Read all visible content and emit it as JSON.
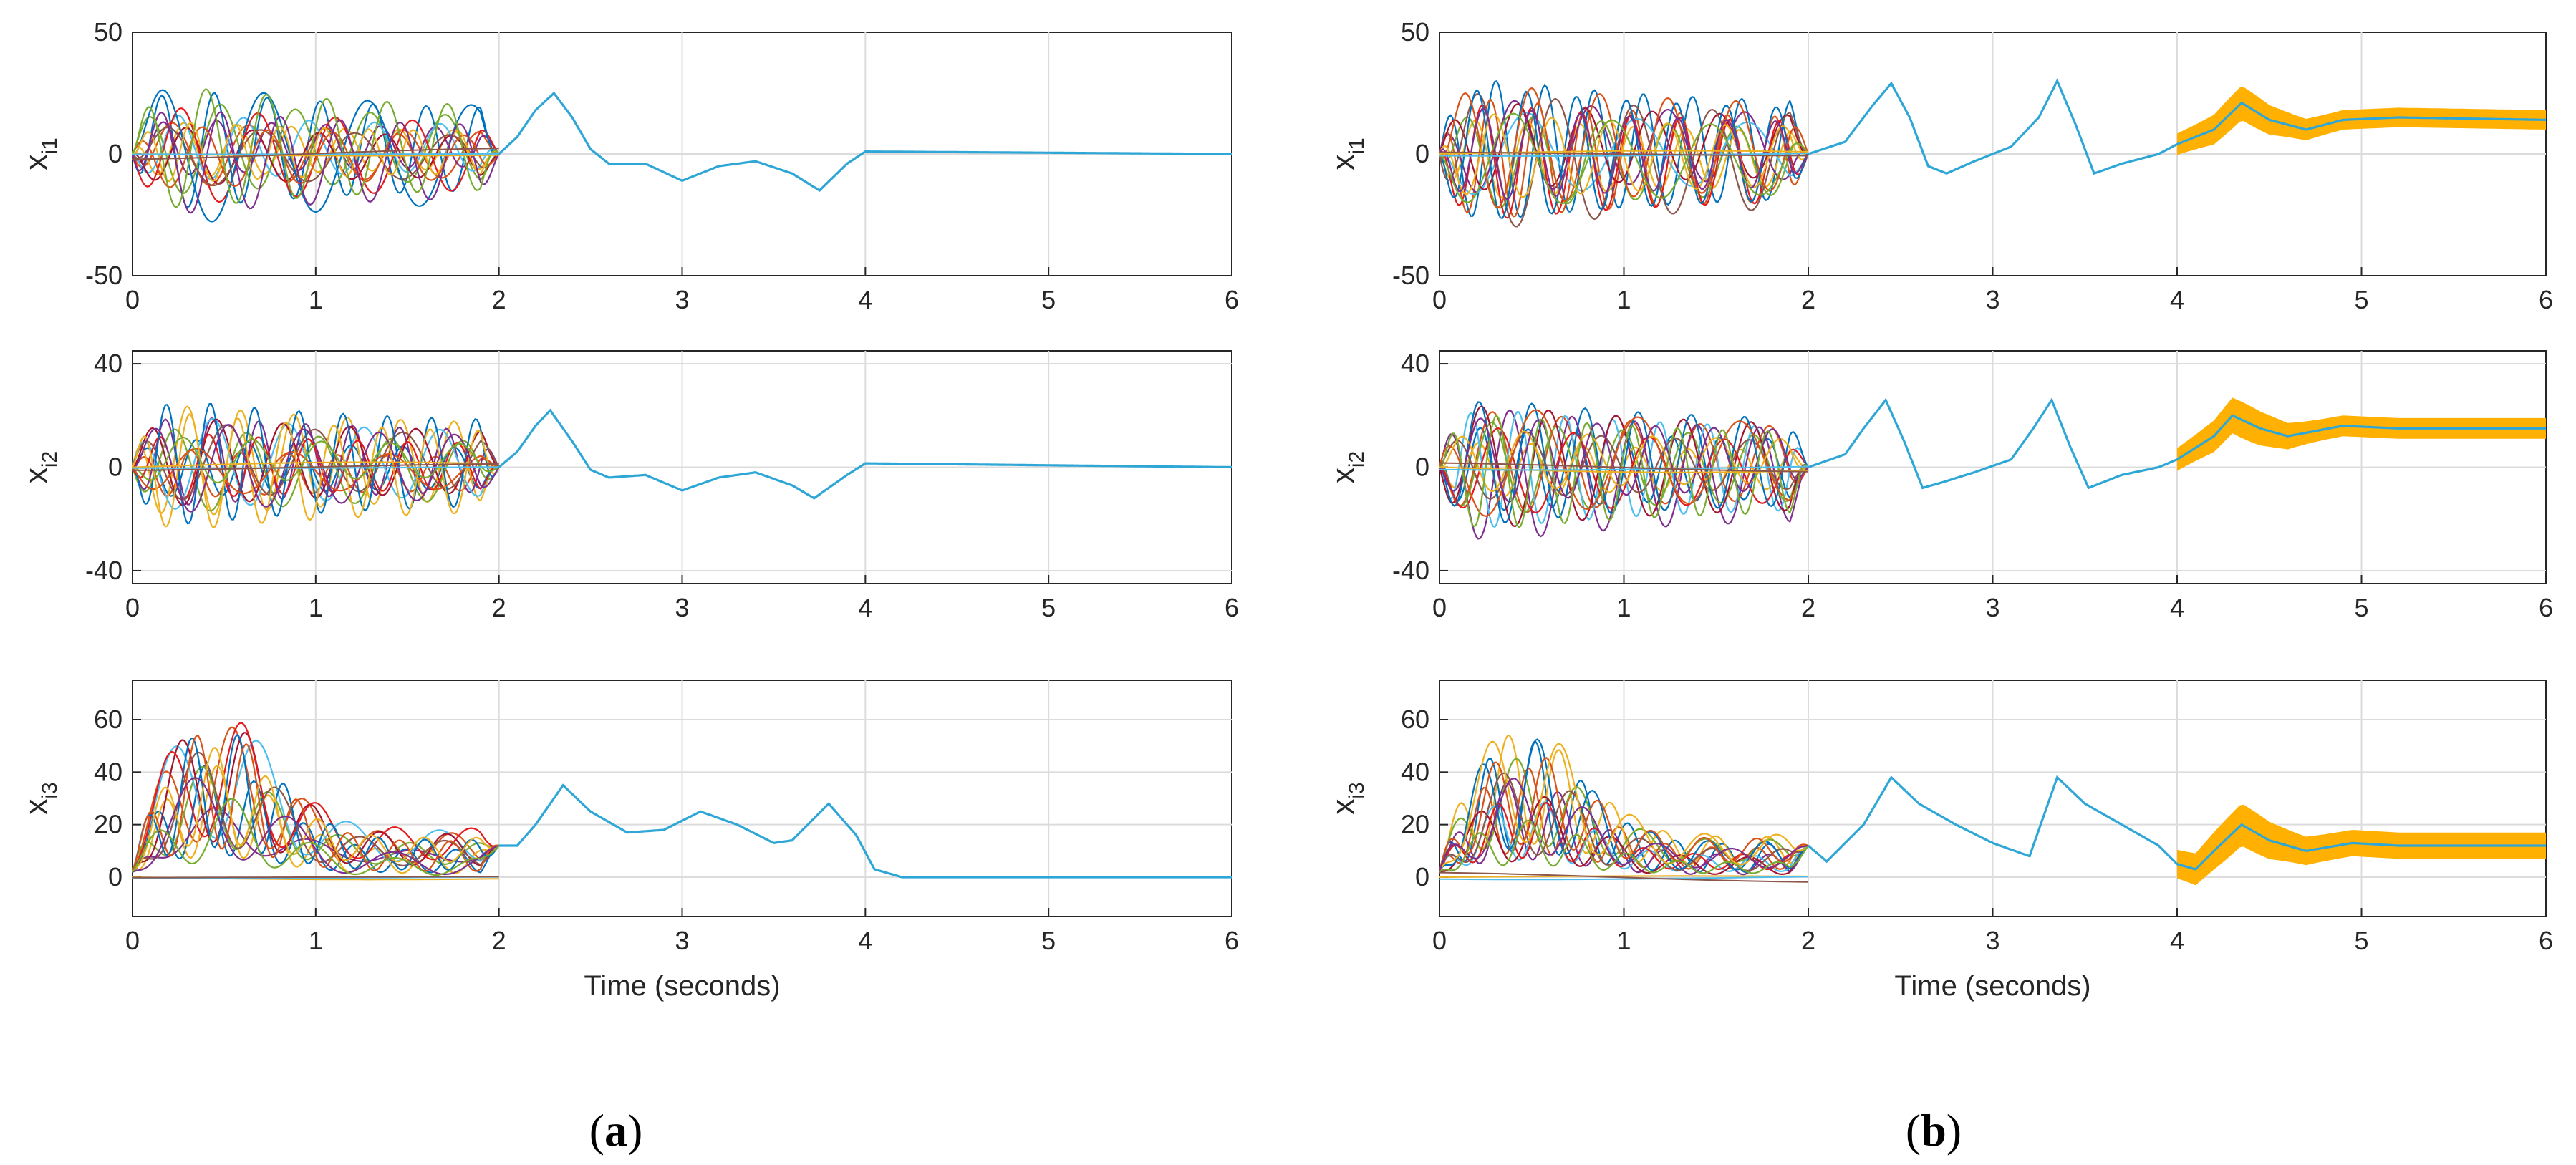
{
  "colors": {
    "series": [
      "#0072BD",
      "#D95319",
      "#EDB120",
      "#7E2F8E",
      "#77AC30",
      "#4DBEEE",
      "#A2142F",
      "#e41a1c",
      "#8c564b"
    ],
    "consensus": "#2ea6d6",
    "band": "#FFB000",
    "grid": "#dcdcdc"
  },
  "panels": [
    {
      "label_open": "(",
      "label_letter": "a",
      "label_close": ")"
    },
    {
      "label_open": "(",
      "label_letter": "b",
      "label_close": ")"
    }
  ],
  "chart_data": [
    {
      "type": "line",
      "panel": "a",
      "row": 1,
      "ylabel_main": "x",
      "ylabel_sub": "i1",
      "xlabel": "",
      "xlim": [
        0,
        6
      ],
      "ylim": [
        -50,
        50
      ],
      "xticks": [
        0,
        1,
        2,
        3,
        4,
        5,
        6
      ],
      "yticks": [
        -50,
        0,
        50
      ],
      "grid": true,
      "band": false,
      "transient_amplitude": 33,
      "consensus": [
        [
          2,
          0
        ],
        [
          2.1,
          7
        ],
        [
          2.2,
          18
        ],
        [
          2.3,
          25
        ],
        [
          2.4,
          15
        ],
        [
          2.5,
          2
        ],
        [
          2.6,
          -4
        ],
        [
          2.8,
          -4
        ],
        [
          3,
          -11
        ],
        [
          3.2,
          -5
        ],
        [
          3.4,
          -3
        ],
        [
          3.6,
          -8
        ],
        [
          3.75,
          -15
        ],
        [
          3.9,
          -4
        ],
        [
          4,
          1
        ],
        [
          6,
          0
        ]
      ]
    },
    {
      "type": "line",
      "panel": "a",
      "row": 2,
      "ylabel_main": "x",
      "ylabel_sub": "i2",
      "xlabel": "",
      "xlim": [
        0,
        6
      ],
      "ylim": [
        -45,
        45
      ],
      "xticks": [
        0,
        1,
        2,
        3,
        4,
        5,
        6
      ],
      "yticks": [
        -40,
        0,
        40
      ],
      "grid": true,
      "band": false,
      "transient_amplitude": 28,
      "consensus": [
        [
          2,
          0
        ],
        [
          2.1,
          6
        ],
        [
          2.2,
          16
        ],
        [
          2.28,
          22
        ],
        [
          2.4,
          10
        ],
        [
          2.5,
          -1
        ],
        [
          2.6,
          -4
        ],
        [
          2.8,
          -3
        ],
        [
          3,
          -9
        ],
        [
          3.2,
          -4
        ],
        [
          3.4,
          -2
        ],
        [
          3.6,
          -7
        ],
        [
          3.72,
          -12
        ],
        [
          3.9,
          -3
        ],
        [
          4,
          1.5
        ],
        [
          6,
          0
        ]
      ]
    },
    {
      "type": "line",
      "panel": "a",
      "row": 3,
      "ylabel_main": "x",
      "ylabel_sub": "i3",
      "xlabel": "Time (seconds)",
      "xlim": [
        0,
        6
      ],
      "ylim": [
        -15,
        75
      ],
      "xticks": [
        0,
        1,
        2,
        3,
        4,
        5,
        6
      ],
      "yticks": [
        0,
        20,
        40,
        60
      ],
      "grid": true,
      "band": false,
      "transient_amplitude": 60,
      "consensus": [
        [
          2,
          12
        ],
        [
          2.1,
          12
        ],
        [
          2.2,
          20
        ],
        [
          2.35,
          35
        ],
        [
          2.5,
          25
        ],
        [
          2.7,
          17
        ],
        [
          2.9,
          18
        ],
        [
          3.1,
          25
        ],
        [
          3.3,
          20
        ],
        [
          3.5,
          13
        ],
        [
          3.6,
          14
        ],
        [
          3.8,
          28
        ],
        [
          3.95,
          16
        ],
        [
          4.05,
          3
        ],
        [
          4.2,
          0
        ],
        [
          6,
          0
        ]
      ]
    },
    {
      "type": "line",
      "panel": "b",
      "row": 1,
      "ylabel_main": "x",
      "ylabel_sub": "i1",
      "xlabel": "",
      "xlim": [
        0,
        6
      ],
      "ylim": [
        -50,
        50
      ],
      "xticks": [
        0,
        1,
        2,
        3,
        4,
        5,
        6
      ],
      "yticks": [
        -50,
        0,
        50
      ],
      "grid": true,
      "band": true,
      "transient_amplitude": 33,
      "consensus": [
        [
          2,
          0
        ],
        [
          2.2,
          5
        ],
        [
          2.35,
          20
        ],
        [
          2.45,
          29
        ],
        [
          2.55,
          15
        ],
        [
          2.65,
          -5
        ],
        [
          2.75,
          -8
        ],
        [
          2.9,
          -3
        ],
        [
          3.1,
          3
        ],
        [
          3.25,
          15
        ],
        [
          3.35,
          30
        ],
        [
          3.45,
          12
        ],
        [
          3.55,
          -8
        ],
        [
          3.7,
          -4
        ],
        [
          3.9,
          0
        ],
        [
          4,
          4
        ],
        [
          4.2,
          10
        ],
        [
          4.35,
          21
        ],
        [
          4.5,
          14
        ],
        [
          4.7,
          10
        ],
        [
          4.9,
          14
        ],
        [
          5.2,
          15
        ],
        [
          6,
          14
        ]
      ]
    },
    {
      "type": "line",
      "panel": "b",
      "row": 2,
      "ylabel_main": "x",
      "ylabel_sub": "i2",
      "xlabel": "",
      "xlim": [
        0,
        6
      ],
      "ylim": [
        -45,
        45
      ],
      "xticks": [
        0,
        1,
        2,
        3,
        4,
        5,
        6
      ],
      "yticks": [
        -40,
        0,
        40
      ],
      "grid": true,
      "band": true,
      "transient_amplitude": 30,
      "consensus": [
        [
          2,
          0
        ],
        [
          2.2,
          5
        ],
        [
          2.3,
          15
        ],
        [
          2.42,
          26
        ],
        [
          2.52,
          10
        ],
        [
          2.62,
          -8
        ],
        [
          2.72,
          -6
        ],
        [
          2.9,
          -2
        ],
        [
          3.1,
          3
        ],
        [
          3.22,
          15
        ],
        [
          3.32,
          26
        ],
        [
          3.42,
          8
        ],
        [
          3.52,
          -8
        ],
        [
          3.7,
          -3
        ],
        [
          3.9,
          0
        ],
        [
          4,
          3
        ],
        [
          4.2,
          12
        ],
        [
          4.3,
          20
        ],
        [
          4.45,
          15
        ],
        [
          4.6,
          12
        ],
        [
          4.9,
          16
        ],
        [
          5.2,
          15
        ],
        [
          6,
          15
        ]
      ]
    },
    {
      "type": "line",
      "panel": "b",
      "row": 3,
      "ylabel_main": "x",
      "ylabel_sub": "i3",
      "xlabel": "Time (seconds)",
      "xlim": [
        0,
        6
      ],
      "ylim": [
        -15,
        75
      ],
      "xticks": [
        0,
        1,
        2,
        3,
        4,
        5,
        6
      ],
      "yticks": [
        0,
        20,
        40,
        60
      ],
      "grid": true,
      "band": true,
      "transient_amplitude": 60,
      "consensus": [
        [
          2,
          12
        ],
        [
          2.1,
          6
        ],
        [
          2.3,
          20
        ],
        [
          2.45,
          38
        ],
        [
          2.6,
          28
        ],
        [
          2.8,
          20
        ],
        [
          3.0,
          13
        ],
        [
          3.2,
          8
        ],
        [
          3.35,
          38
        ],
        [
          3.5,
          28
        ],
        [
          3.7,
          20
        ],
        [
          3.9,
          12
        ],
        [
          4,
          5
        ],
        [
          4.1,
          3
        ],
        [
          4.2,
          10
        ],
        [
          4.35,
          20
        ],
        [
          4.5,
          14
        ],
        [
          4.7,
          10
        ],
        [
          4.95,
          13
        ],
        [
          5.2,
          12
        ],
        [
          6,
          12
        ]
      ]
    }
  ]
}
